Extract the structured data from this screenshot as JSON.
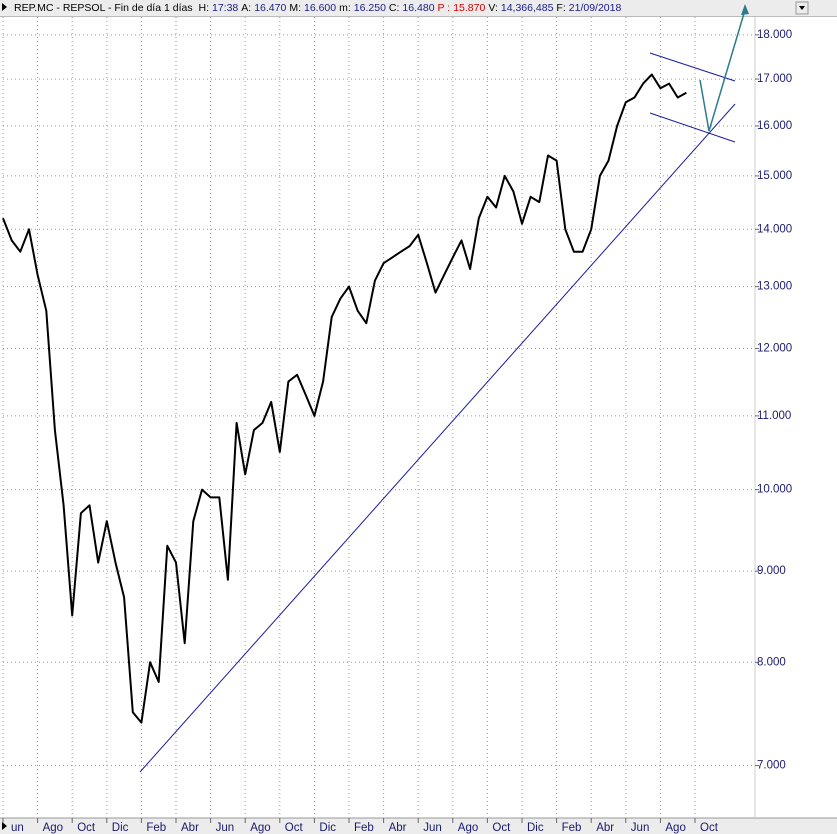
{
  "header": {
    "title": "REP.MC - REPSOL - Fin de día 1 días",
    "fields": [
      {
        "label": "H:",
        "value": "17:38"
      },
      {
        "label": "A:",
        "value": "16.470"
      },
      {
        "label": "M:",
        "value": "16.600"
      },
      {
        "label": "m:",
        "value": "16.250"
      },
      {
        "label": "C:",
        "value": "16.480"
      },
      {
        "label": "P :",
        "value": "15.870",
        "color": "#d00000"
      },
      {
        "label": "V:",
        "value": "14,366,485"
      },
      {
        "label": "F:",
        "value": "21/09/2018"
      }
    ]
  },
  "chart_data": {
    "type": "line",
    "log": true,
    "grid": true,
    "categories": [
      "un",
      null,
      null,
      null,
      "Ago",
      null,
      null,
      null,
      "Oct",
      null,
      null,
      null,
      "Dic",
      null,
      null,
      null,
      "Feb",
      null,
      null,
      null,
      "Abr",
      null,
      null,
      null,
      "Jun",
      null,
      null,
      null,
      "Ago",
      null,
      null,
      null,
      "Oct",
      null,
      null,
      null,
      "Dic",
      null,
      null,
      null,
      "Feb",
      null,
      null,
      null,
      "Abr",
      null,
      null,
      null,
      "Jun",
      null,
      null,
      null,
      "Ago",
      null,
      null,
      null,
      "Oct",
      null,
      null,
      null,
      "Dic",
      null,
      null,
      null,
      "Feb",
      null,
      null,
      null,
      "Abr",
      null,
      null,
      null,
      "Jun",
      null,
      null,
      null,
      "Ago",
      null,
      null,
      null,
      "Oct",
      null
    ],
    "series": [
      {
        "name": "REPSOL",
        "color": "#000000",
        "values": [
          14.2,
          13.8,
          13.6,
          14.0,
          13.2,
          12.6,
          10.8,
          9.8,
          8.5,
          9.7,
          9.8,
          9.1,
          9.6,
          9.1,
          8.7,
          7.5,
          7.4,
          8.0,
          7.8,
          9.3,
          9.1,
          8.2,
          9.6,
          10.0,
          9.9,
          9.9,
          8.9,
          10.9,
          10.2,
          10.8,
          10.9,
          11.2,
          10.5,
          11.5,
          11.6,
          11.3,
          11.0,
          11.5,
          12.5,
          12.8,
          13.0,
          12.6,
          12.4,
          13.1,
          13.4,
          13.5,
          13.6,
          13.7,
          13.9,
          13.4,
          12.9,
          13.2,
          13.5,
          13.8,
          13.3,
          14.2,
          14.6,
          14.4,
          15.0,
          14.7,
          14.1,
          14.6,
          14.5,
          15.4,
          15.3,
          14.0,
          13.6,
          13.6,
          14.0,
          15.0,
          15.3,
          16.0,
          16.5,
          16.6,
          16.9,
          17.1,
          16.8,
          16.9,
          16.6,
          16.7,
          null,
          null
        ]
      }
    ],
    "ylim": [
      6.55,
      18.42
    ],
    "yticks": [
      {
        "value": 7,
        "label": "7.000"
      },
      {
        "value": 8,
        "label": "8.000"
      },
      {
        "value": 9,
        "label": "9.000"
      },
      {
        "value": 10,
        "label": "10.000"
      },
      {
        "value": 11,
        "label": "11.000"
      },
      {
        "value": 12,
        "label": "12.000"
      },
      {
        "value": 13,
        "label": "13.000"
      },
      {
        "value": 14,
        "label": "14.000"
      },
      {
        "value": 15,
        "label": "15.000"
      },
      {
        "value": 16,
        "label": "16.000"
      },
      {
        "value": 17,
        "label": "17.000"
      },
      {
        "value": 18,
        "label": "18.000"
      }
    ]
  }
}
